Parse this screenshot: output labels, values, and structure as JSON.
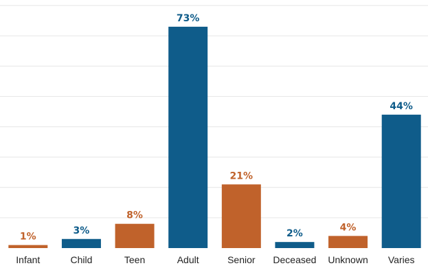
{
  "chart_data": {
    "type": "bar",
    "categories": [
      "Infant",
      "Child",
      "Teen",
      "Adult",
      "Senior",
      "Deceased",
      "Unknown",
      "Varies"
    ],
    "values": [
      1,
      3,
      8,
      73,
      21,
      2,
      4,
      44
    ],
    "value_labels": [
      "1%",
      "3%",
      "8%",
      "73%",
      "21%",
      "2%",
      "4%",
      "44%"
    ],
    "bar_colors": [
      "#c0622b",
      "#0f5c8a",
      "#c0622b",
      "#0f5c8a",
      "#c0622b",
      "#0f5c8a",
      "#c0622b",
      "#0f5c8a"
    ],
    "ylim": [
      0,
      80
    ],
    "grid": true,
    "legend": "none"
  }
}
